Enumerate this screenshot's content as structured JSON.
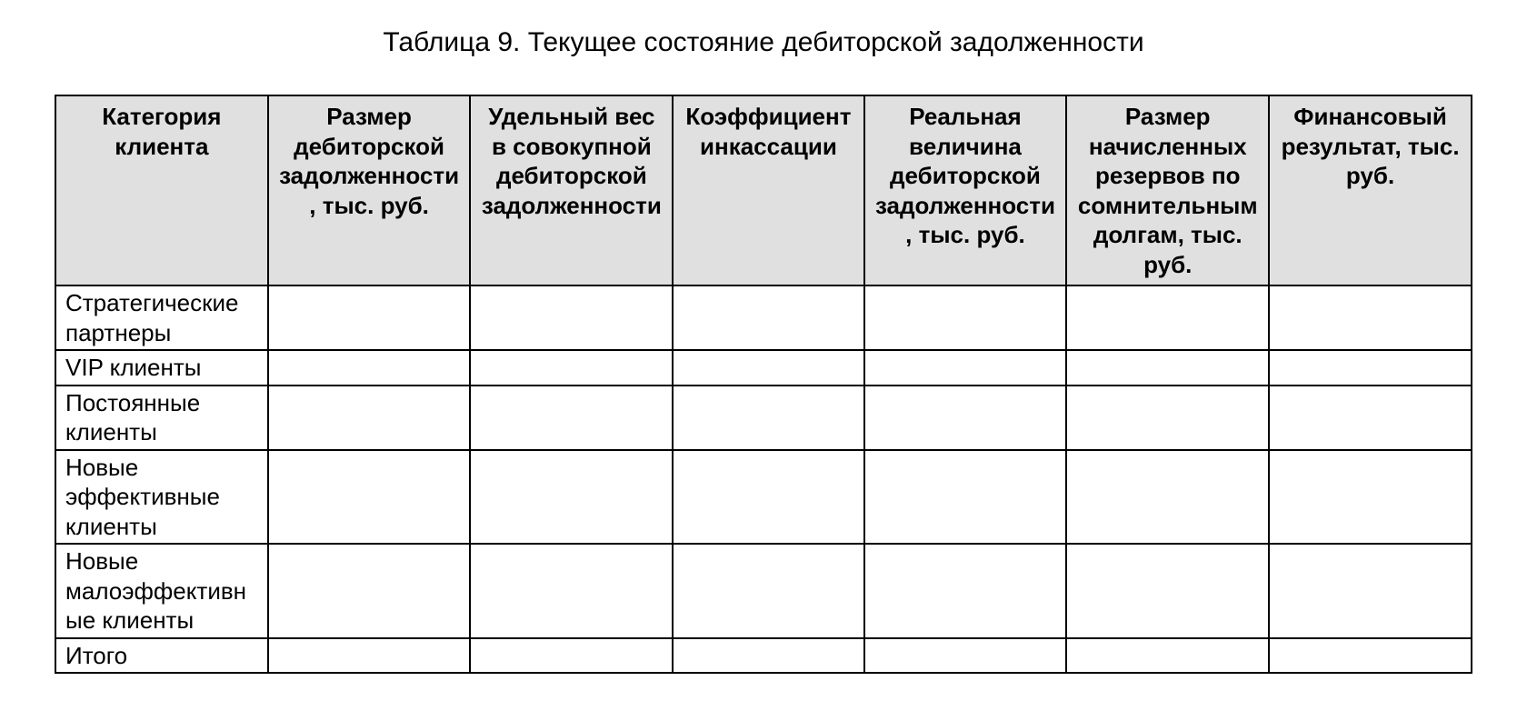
{
  "title": "Таблица 9. Текущее состояние дебиторской задолженности",
  "table": {
    "type": "table",
    "background_color": "#ffffff",
    "header_background_color": "#e0e0e0",
    "border_color": "#000000",
    "border_width": 2,
    "header_fontsize": 26,
    "header_fontweight": 700,
    "cell_fontsize": 26,
    "cell_fontweight": 400,
    "text_color": "#000000",
    "columns": [
      {
        "label": "Категория клиента",
        "width_pct": 15.0,
        "align": "center"
      },
      {
        "label": "Размер дебиторской задолженности, тыс. руб.",
        "width_pct": 14.3,
        "align": "center"
      },
      {
        "label": "Удельный вес в совокупной дебиторской задолженности",
        "width_pct": 14.3,
        "align": "center"
      },
      {
        "label": "Коэффициент инкассации",
        "width_pct": 13.5,
        "align": "center"
      },
      {
        "label": "Реальная величина дебиторской задолженности, тыс. руб.",
        "width_pct": 14.3,
        "align": "center"
      },
      {
        "label": "Размер начисленных резервов по сомнительным долгам, тыс. руб.",
        "width_pct": 14.3,
        "align": "center"
      },
      {
        "label": "Финансовый результат, тыс. руб.",
        "width_pct": 14.3,
        "align": "center"
      }
    ],
    "rows": [
      {
        "label": "Стратегические партнеры",
        "cells": [
          "",
          "",
          "",
          "",
          "",
          ""
        ]
      },
      {
        "label": "VIP клиенты",
        "cells": [
          "",
          "",
          "",
          "",
          "",
          ""
        ]
      },
      {
        "label": "Постоянные клиенты",
        "cells": [
          "",
          "",
          "",
          "",
          "",
          ""
        ]
      },
      {
        "label": "Новые эффективные клиенты",
        "cells": [
          "",
          "",
          "",
          "",
          "",
          ""
        ]
      },
      {
        "label": "Новые малоэффективные клиенты",
        "cells": [
          "",
          "",
          "",
          "",
          "",
          ""
        ]
      },
      {
        "label": "Итого",
        "cells": [
          "",
          "",
          "",
          "",
          "",
          ""
        ]
      }
    ]
  }
}
